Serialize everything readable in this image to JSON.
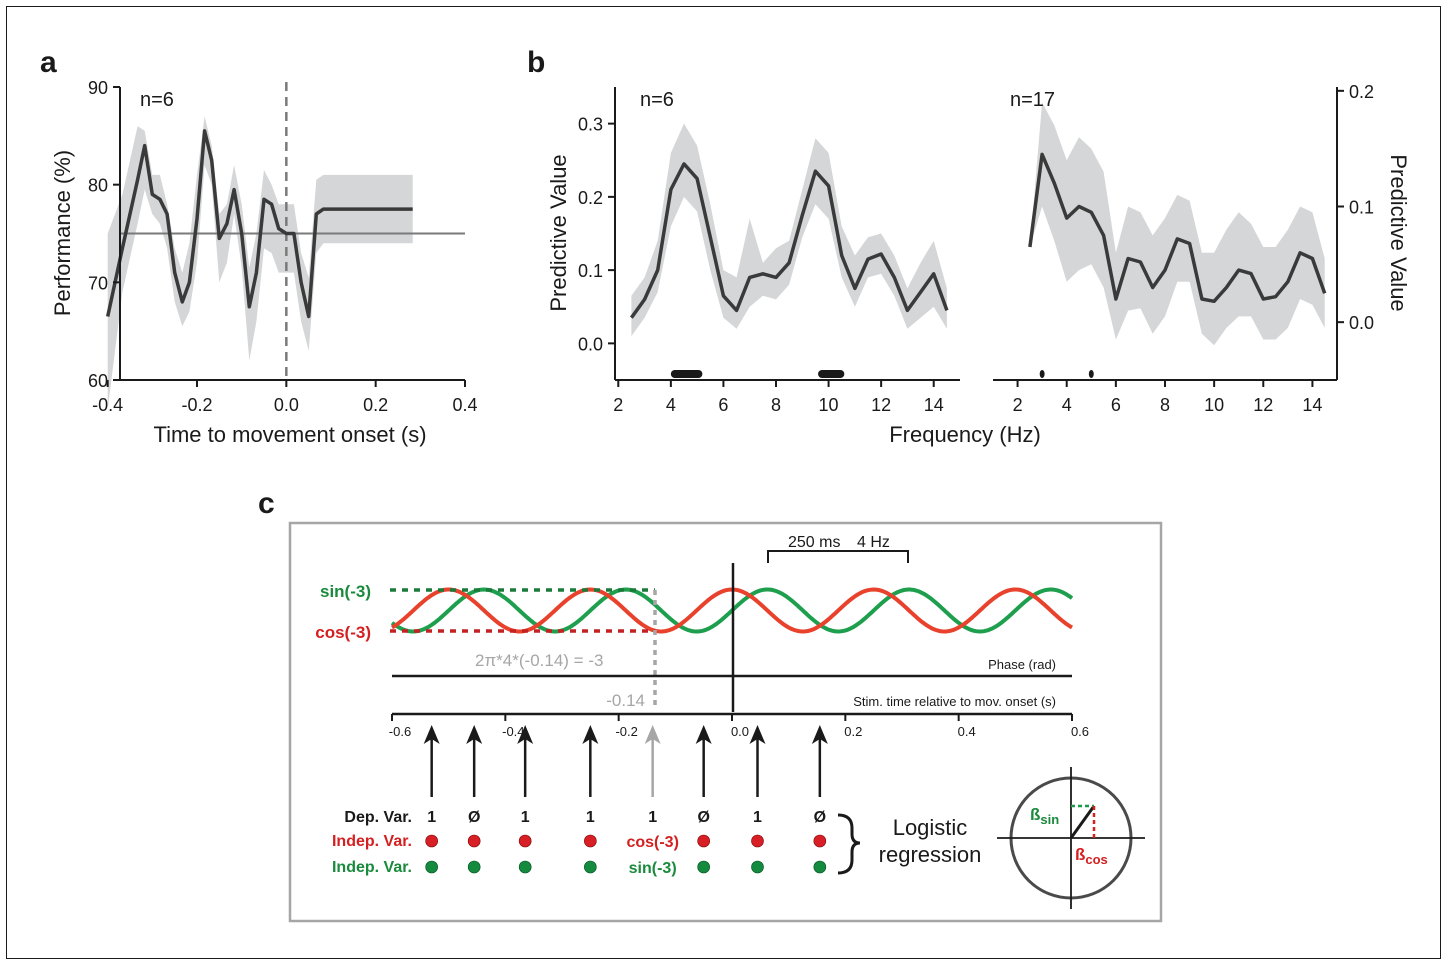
{
  "panels": {
    "a": {
      "label": "a"
    },
    "b": {
      "label": "b"
    },
    "c": {
      "label": "c"
    }
  },
  "chart_data": [
    {
      "id": "a",
      "type": "line",
      "annotation": "n=6",
      "xlabel": "Time to movement onset (s)",
      "ylabel": "Performance (%)",
      "xlim": [
        -0.5,
        0.4
      ],
      "ylim": [
        60,
        90
      ],
      "xticks": [
        -0.4,
        -0.2,
        0.0,
        0.2,
        0.4
      ],
      "xtick_labels": [
        "-0.4",
        "-0.2",
        "0.0",
        "0.2",
        "0.4"
      ],
      "yticks": [
        60,
        70,
        80,
        90
      ],
      "ytick_labels": [
        "60",
        "70",
        "80",
        "90"
      ],
      "reference_line_y": 75,
      "vertical_dashed_x": 0.0,
      "colors": {
        "line": "#3a3a3a",
        "band": "#d4d6d8",
        "ref": "#7a7a7a"
      },
      "x": [
        -0.4,
        -0.367,
        -0.333,
        -0.317,
        -0.3,
        -0.283,
        -0.267,
        -0.25,
        -0.233,
        -0.217,
        -0.2,
        -0.183,
        -0.167,
        -0.15,
        -0.133,
        -0.117,
        -0.1,
        -0.083,
        -0.067,
        -0.05,
        -0.033,
        -0.017,
        0.0,
        0.017,
        0.033,
        0.05,
        0.067,
        0.083,
        0.1,
        0.117,
        0.133,
        0.15,
        0.167,
        0.183,
        0.2,
        0.217,
        0.233,
        0.25,
        0.267,
        0.283
      ],
      "y": [
        66.5,
        73.5,
        80.5,
        84,
        79,
        78.5,
        77,
        71,
        68,
        70,
        76.5,
        85.5,
        82.5,
        74.5,
        76,
        79.5,
        75,
        67.5,
        71,
        78.5,
        78,
        75.5,
        75,
        75,
        70,
        66.5,
        77,
        77.5,
        77.5,
        77.5,
        77.5,
        77.5,
        77.5,
        77.5,
        77.5,
        77.5,
        77.5,
        77.5,
        77.5,
        77.5
      ],
      "y_upper": [
        75,
        79,
        86,
        85.5,
        81,
        81,
        78,
        73.5,
        71,
        74,
        81,
        87,
        84,
        77,
        78,
        82,
        78,
        71.5,
        75,
        81.5,
        80,
        78,
        78,
        78,
        73,
        70.5,
        80.5,
        81,
        81,
        81,
        81,
        81,
        81,
        81,
        81,
        81,
        81,
        81,
        81,
        81
      ],
      "y_lower": [
        57,
        69,
        76,
        79.5,
        77,
        76,
        73.5,
        68,
        65.5,
        67,
        72,
        82,
        80,
        70,
        72,
        77,
        71.5,
        62,
        66,
        73.5,
        73,
        71,
        71,
        71,
        66,
        63,
        73,
        74,
        74,
        74,
        74,
        74,
        74,
        74,
        74,
        74,
        74,
        74,
        74,
        74
      ]
    },
    {
      "id": "b-left",
      "type": "line",
      "annotation": "n=6",
      "xlabel": "Frequency (Hz)",
      "ylabel": "Predictive Value",
      "xlim": [
        1,
        15
      ],
      "ylim": [
        -0.05,
        0.35
      ],
      "xticks": [
        2,
        4,
        6,
        8,
        10,
        12,
        14
      ],
      "xtick_labels": [
        "2",
        "4",
        "6",
        "8",
        "10",
        "12",
        "14"
      ],
      "yticks": [
        0.0,
        0.1,
        0.2,
        0.3
      ],
      "ytick_labels": [
        "0.0",
        "0.1",
        "0.2",
        "0.3"
      ],
      "colors": {
        "line": "#3a3a3a",
        "band": "#d4d6d8",
        "sig": "#1a1a1a"
      },
      "x": [
        2.5,
        3.0,
        3.5,
        4.0,
        4.5,
        5.0,
        5.5,
        6.0,
        6.5,
        7.0,
        7.5,
        8.0,
        8.5,
        9.0,
        9.5,
        10.0,
        10.5,
        11.0,
        11.5,
        12.0,
        12.5,
        13.0,
        13.5,
        14.0,
        14.5
      ],
      "y": [
        0.035,
        0.06,
        0.1,
        0.21,
        0.245,
        0.225,
        0.145,
        0.065,
        0.045,
        0.09,
        0.095,
        0.09,
        0.11,
        0.175,
        0.235,
        0.215,
        0.12,
        0.075,
        0.115,
        0.122,
        0.09,
        0.045,
        0.07,
        0.095,
        0.045
      ],
      "y_upper": [
        0.065,
        0.09,
        0.14,
        0.26,
        0.3,
        0.27,
        0.19,
        0.1,
        0.09,
        0.17,
        0.11,
        0.13,
        0.14,
        0.21,
        0.28,
        0.26,
        0.16,
        0.12,
        0.145,
        0.15,
        0.12,
        0.075,
        0.11,
        0.14,
        0.075
      ],
      "y_lower": [
        0.01,
        0.035,
        0.07,
        0.16,
        0.2,
        0.18,
        0.1,
        0.035,
        0.02,
        0.05,
        0.065,
        0.06,
        0.08,
        0.145,
        0.19,
        0.17,
        0.09,
        0.05,
        0.09,
        0.095,
        0.065,
        0.02,
        0.035,
        0.05,
        0.02
      ],
      "significance_bars": [
        [
          4.0,
          5.2
        ],
        [
          9.6,
          10.6
        ]
      ]
    },
    {
      "id": "b-right",
      "type": "line",
      "annotation": "n=17",
      "xlabel": "Frequency (Hz)",
      "ylabel": "Predictive Value",
      "xlim": [
        1,
        15
      ],
      "ylim": [
        -0.05,
        0.25
      ],
      "xticks": [
        2,
        4,
        6,
        8,
        10,
        12,
        14
      ],
      "xtick_labels": [
        "2",
        "4",
        "6",
        "8",
        "10",
        "12",
        "14"
      ],
      "yticks": [
        0.0,
        0.1,
        0.2
      ],
      "ytick_labels": [
        "0.0",
        "0.1",
        "0.2"
      ],
      "colors": {
        "line": "#3a3a3a",
        "band": "#d4d6d8",
        "sig": "#1a1a1a"
      },
      "x": [
        2.5,
        3.0,
        3.5,
        4.0,
        4.5,
        5.0,
        5.5,
        6.0,
        6.5,
        7.0,
        7.5,
        8.0,
        8.5,
        9.0,
        9.5,
        10.0,
        10.5,
        11.0,
        11.5,
        12.0,
        12.5,
        13.0,
        13.5,
        14.0,
        14.5
      ],
      "y": [
        0.065,
        0.145,
        0.12,
        0.09,
        0.1,
        0.095,
        0.075,
        0.02,
        0.055,
        0.052,
        0.03,
        0.045,
        0.072,
        0.068,
        0.02,
        0.018,
        0.03,
        0.045,
        0.042,
        0.02,
        0.022,
        0.035,
        0.06,
        0.055,
        0.025
      ],
      "y_upper": [
        0.065,
        0.19,
        0.17,
        0.14,
        0.16,
        0.15,
        0.13,
        0.06,
        0.1,
        0.095,
        0.075,
        0.09,
        0.11,
        0.105,
        0.06,
        0.06,
        0.08,
        0.095,
        0.085,
        0.065,
        0.065,
        0.08,
        0.1,
        0.095,
        0.055
      ],
      "y_lower": [
        0.065,
        0.1,
        0.07,
        0.035,
        0.045,
        0.05,
        0.03,
        -0.015,
        0.01,
        0.012,
        -0.01,
        0.005,
        0.035,
        0.035,
        -0.01,
        -0.02,
        -0.005,
        0.005,
        0.005,
        -0.015,
        -0.015,
        -0.005,
        0.02,
        0.015,
        -0.005
      ],
      "significance_bars": [
        [
          2.9,
          3.1
        ],
        [
          4.9,
          5.1
        ]
      ]
    }
  ],
  "panel_c": {
    "sin_label": "sin(-3)",
    "cos_label": "cos(-3)",
    "bracket_label_1": "250 ms",
    "bracket_label_2": "4 Hz",
    "phase_equation": "2π*4*(-0.14) = -3",
    "phase_axis_label": "Phase (rad)",
    "time_marker_label": "-0.14",
    "time_axis_label": "Stim. time relative to mov. onset (s)",
    "time_ticks": [
      -0.6,
      -0.4,
      -0.2,
      0.0,
      0.2,
      0.4,
      0.6
    ],
    "time_tick_labels": [
      "-0.6",
      "-0.4",
      "-0.2",
      "0.0",
      "0.2",
      "0.4",
      "0.6"
    ],
    "frequency_hz": 4,
    "arrow_times": [
      -0.53,
      -0.455,
      -0.365,
      -0.25,
      -0.14,
      -0.05,
      0.045,
      0.155
    ],
    "highlight_time": -0.14,
    "row_labels": {
      "dep": "Dep. Var.",
      "indep_cos": "Indep. Var.",
      "indep_sin": "Indep. Var."
    },
    "dep_values": [
      "1",
      "Ø",
      "1",
      "1",
      "1",
      "Ø",
      "1",
      "Ø"
    ],
    "highlight_cos_text": "cos(-3)",
    "highlight_sin_text": "sin(-3)",
    "regression_line1": "Logistic",
    "regression_line2": "regression",
    "beta_sin": "ß",
    "beta_sin_sub": "sin",
    "beta_cos": "ß",
    "beta_cos_sub": "cos",
    "colors": {
      "sin": "#1e9f4e",
      "cos": "#e8412c",
      "sin_text": "#1a8a3c",
      "cos_text": "#d42020",
      "dot_red": "#d81f26",
      "dot_green": "#138a3e",
      "gray": "#a6a6a6",
      "frame": "#a6a6a6"
    }
  }
}
